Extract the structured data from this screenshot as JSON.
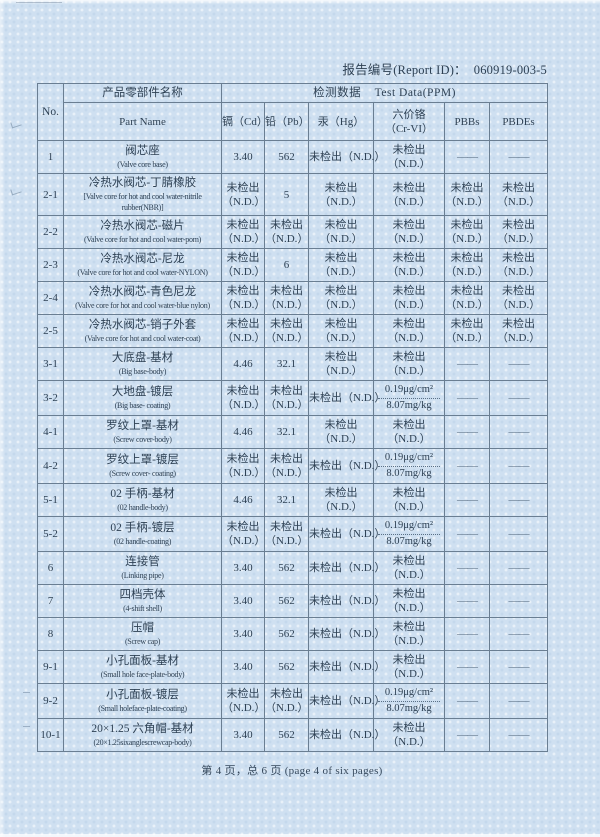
{
  "report": {
    "id_label": "报告编号(Report ID)：",
    "id_value": "060919-003-5",
    "footer": "第 4 页，总 6 页 (page 4 of six pages)"
  },
  "colors": {
    "paper": "#cfe0f1",
    "ink": "#2e4154",
    "line": "#6a7e92"
  },
  "table": {
    "header": {
      "no": "No.",
      "part_name_zh": "产品零部件名称",
      "part_name_en": "Part Name",
      "test_data": "检测数据    Test Data(PPM)",
      "test_cols": [
        {
          "lines": [
            "镉（Cd）"
          ]
        },
        {
          "lines": [
            "铅（Pb）"
          ]
        },
        {
          "lines": [
            "汞（Hg）"
          ]
        },
        {
          "lines": [
            "六价铬",
            "（Cr-VI）"
          ]
        },
        {
          "lines": [
            "PBBs"
          ]
        },
        {
          "lines": [
            "PBDEs"
          ]
        }
      ]
    },
    "rows": [
      {
        "no": "1",
        "name_zh": "阀芯座",
        "name_en": "(Valve core base)",
        "cells": [
          {
            "lines": [
              "3.40"
            ]
          },
          {
            "lines": [
              "562"
            ]
          },
          {
            "lines": [
              "未检出（N.D.）"
            ]
          },
          {
            "lines": [
              "未检出",
              "（N.D.）"
            ]
          },
          {
            "lines": [
              "——"
            ],
            "dash": true
          },
          {
            "lines": [
              "——"
            ],
            "dash": true
          }
        ]
      },
      {
        "no": "2-1",
        "name_zh": "冷热水阀芯-丁腈橡胶",
        "name_en": "[Valve core for hot and cool water-nitrile rubber(NBR)]",
        "cells": [
          {
            "lines": [
              "未检出",
              "（N.D.）"
            ]
          },
          {
            "lines": [
              "5"
            ]
          },
          {
            "lines": [
              "未检出",
              "（N.D.）"
            ]
          },
          {
            "lines": [
              "未检出",
              "（N.D.）"
            ]
          },
          {
            "lines": [
              "未检出",
              "（N.D.）"
            ]
          },
          {
            "lines": [
              "未检出",
              "（N.D.）"
            ]
          }
        ]
      },
      {
        "no": "2-2",
        "name_zh": "冷热水阀芯-磁片",
        "name_en": "(Valve core for hot and cool water-pom)",
        "cells": [
          {
            "lines": [
              "未检出",
              "（N.D.）"
            ]
          },
          {
            "lines": [
              "未检出",
              "（N.D.）"
            ]
          },
          {
            "lines": [
              "未检出",
              "（N.D.）"
            ]
          },
          {
            "lines": [
              "未检出",
              "（N.D.）"
            ]
          },
          {
            "lines": [
              "未检出",
              "（N.D.）"
            ]
          },
          {
            "lines": [
              "未检出",
              "（N.D.）"
            ]
          }
        ]
      },
      {
        "no": "2-3",
        "name_zh": "冷热水阀芯-尼龙",
        "name_en": "(Valve core for hot and cool water-NYLON)",
        "cells": [
          {
            "lines": [
              "未检出",
              "（N.D.）"
            ]
          },
          {
            "lines": [
              "6"
            ]
          },
          {
            "lines": [
              "未检出",
              "（N.D.）"
            ]
          },
          {
            "lines": [
              "未检出",
              "（N.D.）"
            ]
          },
          {
            "lines": [
              "未检出",
              "（N.D.）"
            ]
          },
          {
            "lines": [
              "未检出",
              "（N.D.）"
            ]
          }
        ]
      },
      {
        "no": "2-4",
        "name_zh": "冷热水阀芯-青色尼龙",
        "name_en": "(Valve core for hot and cool water-blue nylon)",
        "cells": [
          {
            "lines": [
              "未检出",
              "（N.D.）"
            ]
          },
          {
            "lines": [
              "未检出",
              "（N.D.）"
            ]
          },
          {
            "lines": [
              "未检出",
              "（N.D.）"
            ]
          },
          {
            "lines": [
              "未检出",
              "（N.D.）"
            ]
          },
          {
            "lines": [
              "未检出",
              "（N.D.）"
            ]
          },
          {
            "lines": [
              "未检出",
              "（N.D.）"
            ]
          }
        ]
      },
      {
        "no": "2-5",
        "name_zh": "冷热水阀芯-销子外套",
        "name_en": "(Valve core for hot and cool water-coat)",
        "cells": [
          {
            "lines": [
              "未检出",
              "（N.D.）"
            ]
          },
          {
            "lines": [
              "未检出",
              "（N.D.）"
            ]
          },
          {
            "lines": [
              "未检出",
              "（N.D.）"
            ]
          },
          {
            "lines": [
              "未检出",
              "（N.D.）"
            ]
          },
          {
            "lines": [
              "未检出",
              "（N.D.）"
            ]
          },
          {
            "lines": [
              "未检出",
              "（N.D.）"
            ]
          }
        ]
      },
      {
        "no": "3-1",
        "name_zh": "大底盘-基材",
        "name_en": "(Big base-body)",
        "cells": [
          {
            "lines": [
              "4.46"
            ]
          },
          {
            "lines": [
              "32.1"
            ]
          },
          {
            "lines": [
              "未检出",
              "（N.D.）"
            ]
          },
          {
            "lines": [
              "未检出",
              "（N.D.）"
            ]
          },
          {
            "lines": [
              "——"
            ],
            "dash": true
          },
          {
            "lines": [
              "——"
            ],
            "dash": true
          }
        ]
      },
      {
        "no": "3-2",
        "name_zh": "大地盘-镀层",
        "name_en": "(Big base- coating)",
        "cells": [
          {
            "lines": [
              "未检出",
              "（N.D.）"
            ]
          },
          {
            "lines": [
              "未检出",
              "（N.D.）"
            ]
          },
          {
            "lines": [
              "未检出（N.D.）"
            ]
          },
          {
            "lines": [
              "0.19μg/cm²",
              "8.07mg/kg"
            ],
            "divider": true
          },
          {
            "lines": [
              "——"
            ],
            "dash": true
          },
          {
            "lines": [
              "——"
            ],
            "dash": true
          }
        ]
      },
      {
        "no": "4-1",
        "name_zh": "罗纹上罩-基材",
        "name_en": "(Screw cover-body)",
        "cells": [
          {
            "lines": [
              "4.46"
            ]
          },
          {
            "lines": [
              "32.1"
            ]
          },
          {
            "lines": [
              "未检出",
              "（N.D.）"
            ]
          },
          {
            "lines": [
              "未检出",
              "（N.D.）"
            ]
          },
          {
            "lines": [
              "——"
            ],
            "dash": true
          },
          {
            "lines": [
              "——"
            ],
            "dash": true
          }
        ]
      },
      {
        "no": "4-2",
        "name_zh": "罗纹上罩-镀层",
        "name_en": "(Screw cover- coating)",
        "cells": [
          {
            "lines": [
              "未检出",
              "（N.D.）"
            ]
          },
          {
            "lines": [
              "未检出",
              "（N.D.）"
            ]
          },
          {
            "lines": [
              "未检出（N.D.）"
            ]
          },
          {
            "lines": [
              "0.19μg/cm²",
              "8.07mg/kg"
            ],
            "divider": true
          },
          {
            "lines": [
              "——"
            ],
            "dash": true
          },
          {
            "lines": [
              "——"
            ],
            "dash": true
          }
        ]
      },
      {
        "no": "5-1",
        "name_zh": "02 手柄-基材",
        "name_en": "(02 handle-body)",
        "cells": [
          {
            "lines": [
              "4.46"
            ]
          },
          {
            "lines": [
              "32.1"
            ]
          },
          {
            "lines": [
              "未检出",
              "（N.D.）"
            ]
          },
          {
            "lines": [
              "未检出",
              "（N.D.）"
            ]
          },
          {
            "lines": [
              "——"
            ],
            "dash": true
          },
          {
            "lines": [
              "——"
            ],
            "dash": true
          }
        ]
      },
      {
        "no": "5-2",
        "name_zh": "02 手柄-镀层",
        "name_en": "(02 handle-coating)",
        "cells": [
          {
            "lines": [
              "未检出",
              "（N.D.）"
            ]
          },
          {
            "lines": [
              "未检出",
              "（N.D.）"
            ]
          },
          {
            "lines": [
              "未检出（N.D.）"
            ]
          },
          {
            "lines": [
              "0.19μg/cm²",
              "8.07mg/kg"
            ],
            "divider": true
          },
          {
            "lines": [
              "——"
            ],
            "dash": true
          },
          {
            "lines": [
              "——"
            ],
            "dash": true
          }
        ]
      },
      {
        "no": "6",
        "name_zh": "连接管",
        "name_en": "(Linking pipe)",
        "cells": [
          {
            "lines": [
              "3.40"
            ]
          },
          {
            "lines": [
              "562"
            ]
          },
          {
            "lines": [
              "未检出（N.D.）"
            ]
          },
          {
            "lines": [
              "未检出",
              "（N.D.）"
            ]
          },
          {
            "lines": [
              "——"
            ],
            "dash": true
          },
          {
            "lines": [
              "——"
            ],
            "dash": true
          }
        ]
      },
      {
        "no": "7",
        "name_zh": "四档壳体",
        "name_en": "(4-shift shell)",
        "cells": [
          {
            "lines": [
              "3.40"
            ]
          },
          {
            "lines": [
              "562"
            ]
          },
          {
            "lines": [
              "未检出（N.D.）"
            ]
          },
          {
            "lines": [
              "未检出",
              "（N.D.）"
            ]
          },
          {
            "lines": [
              "——"
            ],
            "dash": true
          },
          {
            "lines": [
              "——"
            ],
            "dash": true
          }
        ]
      },
      {
        "no": "8",
        "name_zh": "压帽",
        "name_en": "(Screw cap)",
        "cells": [
          {
            "lines": [
              "3.40"
            ]
          },
          {
            "lines": [
              "562"
            ]
          },
          {
            "lines": [
              "未检出（N.D.）"
            ]
          },
          {
            "lines": [
              "未检出",
              "（N.D.）"
            ]
          },
          {
            "lines": [
              "——"
            ],
            "dash": true
          },
          {
            "lines": [
              "——"
            ],
            "dash": true
          }
        ]
      },
      {
        "no": "9-1",
        "name_zh": "小孔面板-基材",
        "name_en": "(Small hole face-plate-body)",
        "cells": [
          {
            "lines": [
              "3.40"
            ]
          },
          {
            "lines": [
              "562"
            ]
          },
          {
            "lines": [
              "未检出（N.D.）"
            ]
          },
          {
            "lines": [
              "未检出",
              "（N.D.）"
            ]
          },
          {
            "lines": [
              "——"
            ],
            "dash": true
          },
          {
            "lines": [
              "——"
            ],
            "dash": true
          }
        ]
      },
      {
        "no": "9-2",
        "name_zh": "小孔面板-镀层",
        "name_en": "(Small holeface-plate-coating)",
        "cells": [
          {
            "lines": [
              "未检出",
              "（N.D.）"
            ]
          },
          {
            "lines": [
              "未检出",
              "（N.D.）"
            ]
          },
          {
            "lines": [
              "未检出（N.D.）"
            ]
          },
          {
            "lines": [
              "0.19μg/cm²",
              "8.07mg/kg"
            ],
            "divider": true
          },
          {
            "lines": [
              "——"
            ],
            "dash": true
          },
          {
            "lines": [
              "——"
            ],
            "dash": true
          }
        ]
      },
      {
        "no": "10-1",
        "name_zh": "20×1.25 六角帽-基材",
        "name_en": "(20×1.25sixanglescrewcap-body)",
        "cells": [
          {
            "lines": [
              "3.40"
            ]
          },
          {
            "lines": [
              "562"
            ]
          },
          {
            "lines": [
              "未检出（N.D.）"
            ]
          },
          {
            "lines": [
              "未检出",
              "（N.D.）"
            ]
          },
          {
            "lines": [
              "——"
            ],
            "dash": true
          },
          {
            "lines": [
              "——"
            ],
            "dash": true
          }
        ]
      }
    ]
  }
}
